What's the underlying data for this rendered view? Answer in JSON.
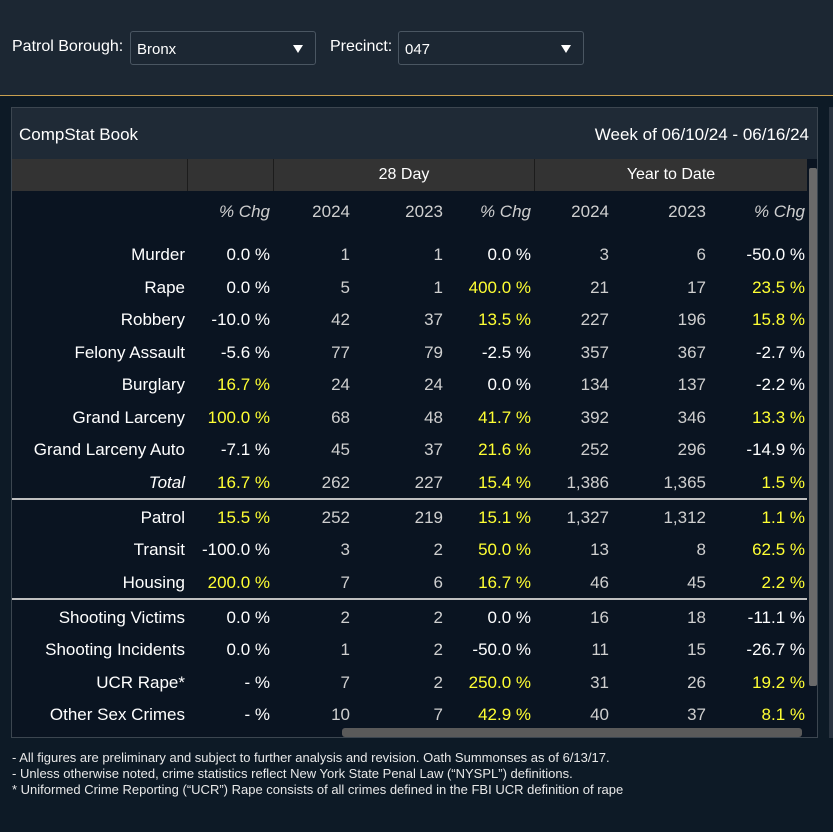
{
  "filters": {
    "borough_label": "Patrol Borough:",
    "borough_value": "Bronx",
    "precinct_label": "Precinct:",
    "precinct_value": "047"
  },
  "panel": {
    "title": "CompStat Book",
    "week": "Week of 06/10/24 - 06/16/24"
  },
  "groups": {
    "day28": "28 Day",
    "ytd": "Year to Date"
  },
  "headers": [
    "% Chg",
    "2024",
    "2023",
    "% Chg",
    "2024",
    "2023",
    "% Chg"
  ],
  "rows": [
    {
      "label": "Murder",
      "c": [
        "0.0 %",
        "1",
        "1",
        "0.0 %",
        "3",
        "6",
        "-50.0 %"
      ]
    },
    {
      "label": "Rape",
      "c": [
        "0.0 %",
        "5",
        "1",
        "400.0 %",
        "21",
        "17",
        "23.5 %"
      ]
    },
    {
      "label": "Robbery",
      "c": [
        "-10.0 %",
        "42",
        "37",
        "13.5 %",
        "227",
        "196",
        "15.8 %"
      ]
    },
    {
      "label": "Felony Assault",
      "c": [
        "-5.6 %",
        "77",
        "79",
        "-2.5 %",
        "357",
        "367",
        "-2.7 %"
      ]
    },
    {
      "label": "Burglary",
      "c": [
        "16.7 %",
        "24",
        "24",
        "0.0 %",
        "134",
        "137",
        "-2.2 %"
      ]
    },
    {
      "label": "Grand Larceny",
      "c": [
        "100.0 %",
        "68",
        "48",
        "41.7 %",
        "392",
        "346",
        "13.3 %"
      ]
    },
    {
      "label": "Grand Larceny Auto",
      "c": [
        "-7.1 %",
        "45",
        "37",
        "21.6 %",
        "252",
        "296",
        "-14.9 %"
      ]
    },
    {
      "label": "Total",
      "c": [
        "16.7 %",
        "262",
        "227",
        "15.4 %",
        "1,386",
        "1,365",
        "1.5 %"
      ]
    },
    {
      "label": "Patrol",
      "c": [
        "15.5 %",
        "252",
        "219",
        "15.1 %",
        "1,327",
        "1,312",
        "1.1 %"
      ]
    },
    {
      "label": "Transit",
      "c": [
        "-100.0 %",
        "3",
        "2",
        "50.0 %",
        "13",
        "8",
        "62.5 %"
      ]
    },
    {
      "label": "Housing",
      "c": [
        "200.0 %",
        "7",
        "6",
        "16.7 %",
        "46",
        "45",
        "2.2 %"
      ]
    },
    {
      "label": "Shooting Victims",
      "c": [
        "0.0 %",
        "2",
        "2",
        "0.0 %",
        "16",
        "18",
        "-11.1 %"
      ]
    },
    {
      "label": "Shooting Incidents",
      "c": [
        "0.0 %",
        "1",
        "2",
        "-50.0 %",
        "11",
        "15",
        "-26.7 %"
      ]
    },
    {
      "label": "UCR Rape*",
      "c": [
        "- %",
        "7",
        "2",
        "250.0 %",
        "31",
        "26",
        "19.2 %"
      ]
    },
    {
      "label": "Other Sex Crimes",
      "c": [
        "- %",
        "10",
        "7",
        "42.9 %",
        "40",
        "37",
        "8.1 %"
      ]
    }
  ],
  "footnotes": [
    "- All figures are preliminary and subject to further analysis and revision. Oath Summonses as of 6/13/17.",
    "- Unless otherwise noted, crime statistics reflect New York State Penal Law (“NYSPL”) definitions.",
    "* Uniformed Crime Reporting (“UCR”) Rape consists of all crimes defined in the FBI UCR definition of rape"
  ],
  "colors": {
    "highlight": "#ffff33",
    "background": "#0a1421",
    "header_band": "#333333"
  }
}
